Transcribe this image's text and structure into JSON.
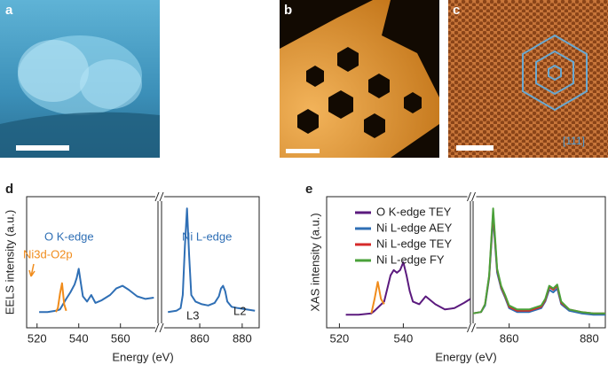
{
  "panels": [
    {
      "label": "a"
    },
    {
      "label": "b"
    },
    {
      "label": "c",
      "annotation": "[111]"
    }
  ],
  "chart_data": [
    {
      "type": "line",
      "panel": "d",
      "ylabel": "EELS intensity (a.u.)",
      "xlabel": "Energy (eV)",
      "xlim": [
        [
          515,
          578
        ],
        [
          842,
          888
        ]
      ],
      "xticks": [
        520,
        540,
        560,
        860,
        880
      ],
      "ylim": [
        0,
        1
      ],
      "annotations": [
        {
          "text": "O K-edge",
          "color": "#2f6fb5"
        },
        {
          "text": "Ni L-edge",
          "color": "#2f6fb5"
        },
        {
          "text": "Ni3d-O2p",
          "color": "#f08c1c"
        },
        {
          "text": "L3",
          "color": "#222222"
        },
        {
          "text": "L2",
          "color": "#222222"
        }
      ],
      "series": [
        {
          "color": "#2f6fb5",
          "x": [
            521,
            525,
            529,
            531,
            534,
            536,
            538,
            539,
            540,
            541,
            542,
            544,
            546,
            548,
            551,
            555,
            558,
            561,
            564,
            568,
            572,
            576
          ],
          "values": [
            0.12,
            0.12,
            0.13,
            0.14,
            0.22,
            0.27,
            0.33,
            0.38,
            0.45,
            0.34,
            0.24,
            0.2,
            0.25,
            0.19,
            0.21,
            0.25,
            0.3,
            0.32,
            0.29,
            0.24,
            0.22,
            0.23
          ]
        },
        {
          "color": "#f08c1c",
          "x": [
            529,
            530,
            531,
            532,
            533,
            534
          ],
          "values": [
            0.12,
            0.15,
            0.26,
            0.34,
            0.18,
            0.13
          ]
        },
        {
          "color": "#2f6fb5",
          "x": [
            845,
            849,
            851,
            852,
            853,
            854,
            855,
            856,
            858,
            861,
            864,
            867,
            869,
            870,
            871,
            872,
            873,
            875,
            878,
            882,
            886
          ],
          "values": [
            0.12,
            0.13,
            0.15,
            0.25,
            0.62,
            0.91,
            0.55,
            0.25,
            0.2,
            0.18,
            0.17,
            0.19,
            0.24,
            0.3,
            0.32,
            0.28,
            0.2,
            0.16,
            0.15,
            0.14,
            0.13
          ]
        }
      ]
    },
    {
      "type": "line",
      "panel": "e",
      "ylabel": "XAS intensity (a.u.)",
      "xlabel": "Energy (eV)",
      "xlim": [
        [
          516,
          561
        ],
        [
          851,
          884
        ]
      ],
      "xticks": [
        520,
        540,
        860,
        880
      ],
      "ylim": [
        0,
        1
      ],
      "series": [
        {
          "name": "O K-edge TEY",
          "color": "#5b1a7e",
          "x": [
            522,
            526,
            530,
            531,
            534,
            535,
            536,
            537,
            538,
            539,
            540,
            541,
            542,
            543,
            545,
            547,
            550,
            553,
            556,
            559,
            561
          ],
          "values": [
            0.1,
            0.1,
            0.11,
            0.13,
            0.2,
            0.3,
            0.4,
            0.44,
            0.42,
            0.44,
            0.5,
            0.4,
            0.28,
            0.2,
            0.18,
            0.24,
            0.18,
            0.14,
            0.15,
            0.19,
            0.22
          ]
        },
        {
          "color": "#f08c1c",
          "x": [
            530,
            531,
            532,
            533,
            534
          ],
          "values": [
            0.11,
            0.22,
            0.35,
            0.22,
            0.18
          ]
        },
        {
          "name": "Ni L-edge AEY",
          "color": "#2f6fb5",
          "x": [
            851,
            853,
            854,
            855,
            856,
            857,
            858,
            859,
            860,
            862,
            865,
            868,
            869,
            870,
            871,
            872,
            873,
            875,
            878,
            881,
            884
          ],
          "values": [
            0.11,
            0.12,
            0.17,
            0.38,
            0.84,
            0.42,
            0.3,
            0.23,
            0.15,
            0.12,
            0.12,
            0.15,
            0.2,
            0.29,
            0.27,
            0.3,
            0.18,
            0.13,
            0.11,
            0.1,
            0.1
          ]
        },
        {
          "name": "Ni L-edge TEY",
          "color": "#d62a2a",
          "x": [
            851,
            853,
            854,
            855,
            856,
            857,
            858,
            859,
            860,
            862,
            865,
            868,
            869,
            870,
            871,
            872,
            873,
            875,
            878,
            881,
            884
          ],
          "values": [
            0.11,
            0.12,
            0.18,
            0.39,
            0.88,
            0.44,
            0.31,
            0.24,
            0.16,
            0.13,
            0.13,
            0.16,
            0.21,
            0.31,
            0.29,
            0.32,
            0.19,
            0.14,
            0.12,
            0.11,
            0.11
          ]
        },
        {
          "name": "Ni L-edge FY",
          "color": "#4aa13a",
          "x": [
            851,
            853,
            854,
            855,
            856,
            857,
            858,
            859,
            860,
            862,
            865,
            868,
            869,
            870,
            871,
            872,
            873,
            875,
            878,
            881,
            884
          ],
          "values": [
            0.11,
            0.12,
            0.18,
            0.4,
            0.91,
            0.45,
            0.32,
            0.25,
            0.17,
            0.14,
            0.14,
            0.17,
            0.22,
            0.32,
            0.3,
            0.33,
            0.2,
            0.14,
            0.12,
            0.11,
            0.11
          ]
        }
      ]
    }
  ]
}
